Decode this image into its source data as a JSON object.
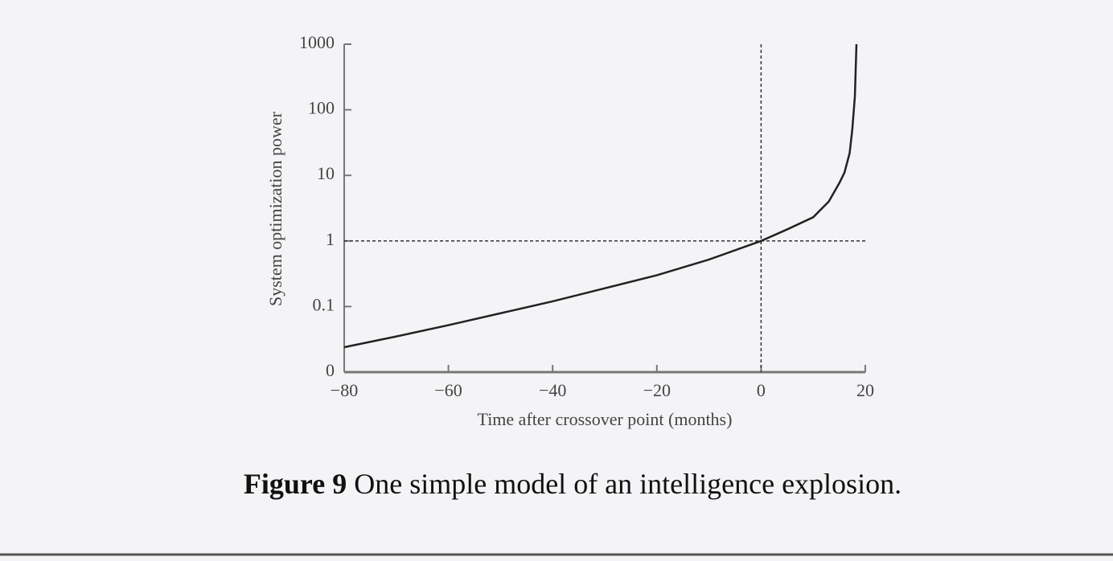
{
  "chart_data": {
    "type": "line",
    "x_label": "Time after crossover point (months)",
    "y_label": "System optimization power",
    "x": [
      -80,
      -70,
      -60,
      -50,
      -40,
      -30,
      -20,
      -10,
      0,
      5,
      10,
      13,
      15,
      16,
      17,
      17.5,
      18,
      18.3
    ],
    "series": [
      {
        "color": "#222222",
        "values": [
          0.024,
          0.035,
          0.052,
          0.079,
          0.12,
          0.19,
          0.3,
          0.52,
          1,
          1.5,
          2.3,
          4,
          7.6,
          11,
          22,
          50,
          160,
          1000
        ]
      }
    ],
    "xlim": [
      -80,
      20
    ],
    "xticks": [
      {
        "value": -80,
        "label": "−80"
      },
      {
        "value": -60,
        "label": "−60"
      },
      {
        "value": -40,
        "label": "−40"
      },
      {
        "value": -20,
        "label": "−20"
      },
      0,
      20
    ],
    "ylim": [
      0.01,
      1000
    ],
    "yticks": [
      {
        "value": 0.01,
        "label": "0"
      },
      0.1,
      1,
      10,
      100,
      1000
    ],
    "log_y": true,
    "hline": 1,
    "vline": 0
  },
  "caption": {
    "label": "Figure 9",
    "text": "One simple model of an intelligence explosion."
  }
}
